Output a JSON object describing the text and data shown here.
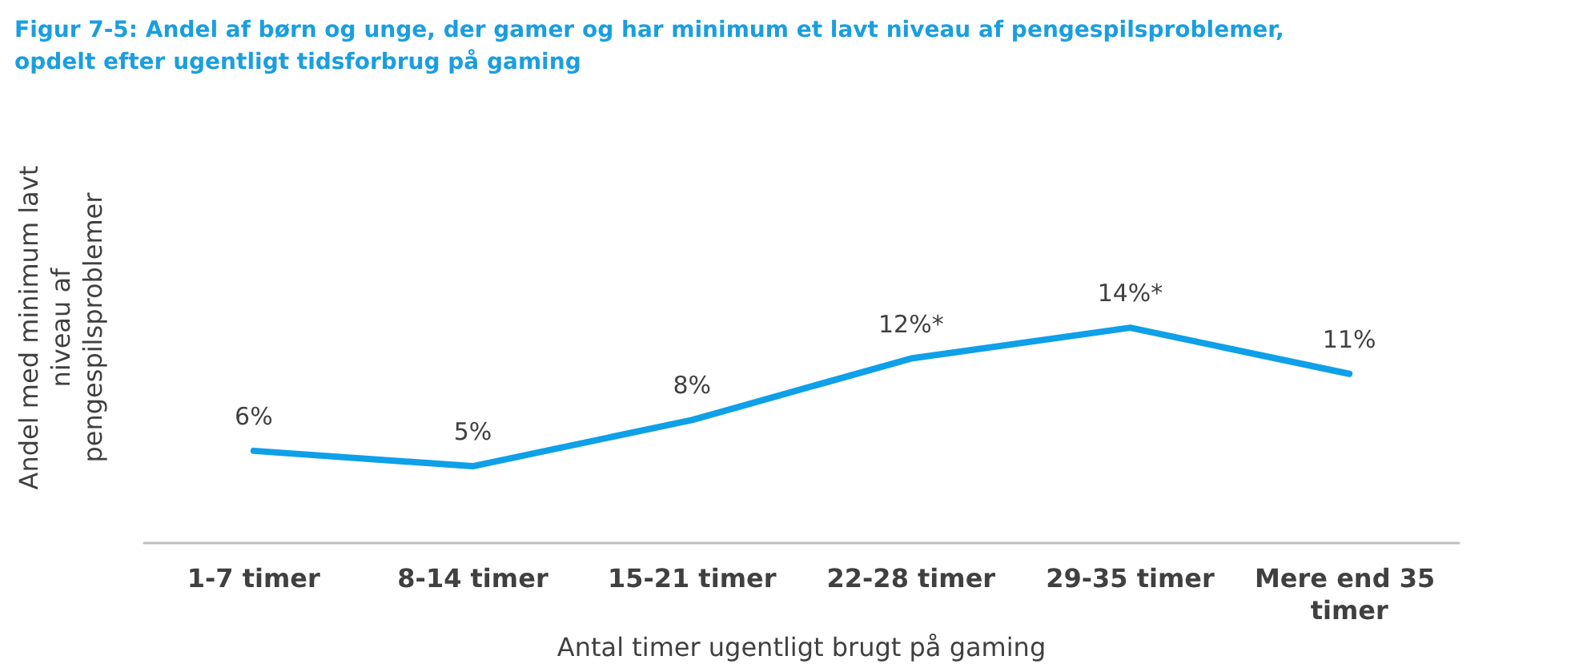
{
  "chart_data": {
    "type": "line",
    "title": "Figur 7-5: Andel af børn og unge, der gamer og har minimum et lavt niveau af pengespilsproblemer, opdelt efter ugentligt tidsforbrug på gaming",
    "xlabel": "Antal timer ugentligt brugt på gaming",
    "ylabel": "Andel med minimum lavt niveau af pengespilsproblemer",
    "categories": [
      "1-7 timer",
      "8-14 timer",
      "15-21 timer",
      "22-28 timer",
      "29-35 timer",
      "Mere end 35 timer"
    ],
    "series": [
      {
        "color": "#0ea0e8",
        "values": [
          6,
          5,
          8,
          12,
          14,
          11
        ],
        "value_labels": [
          "6%",
          "5%",
          "8%",
          "12%*",
          "14%*",
          "11%"
        ]
      }
    ],
    "grid": false,
    "marker": "none",
    "line_style": "solid"
  }
}
